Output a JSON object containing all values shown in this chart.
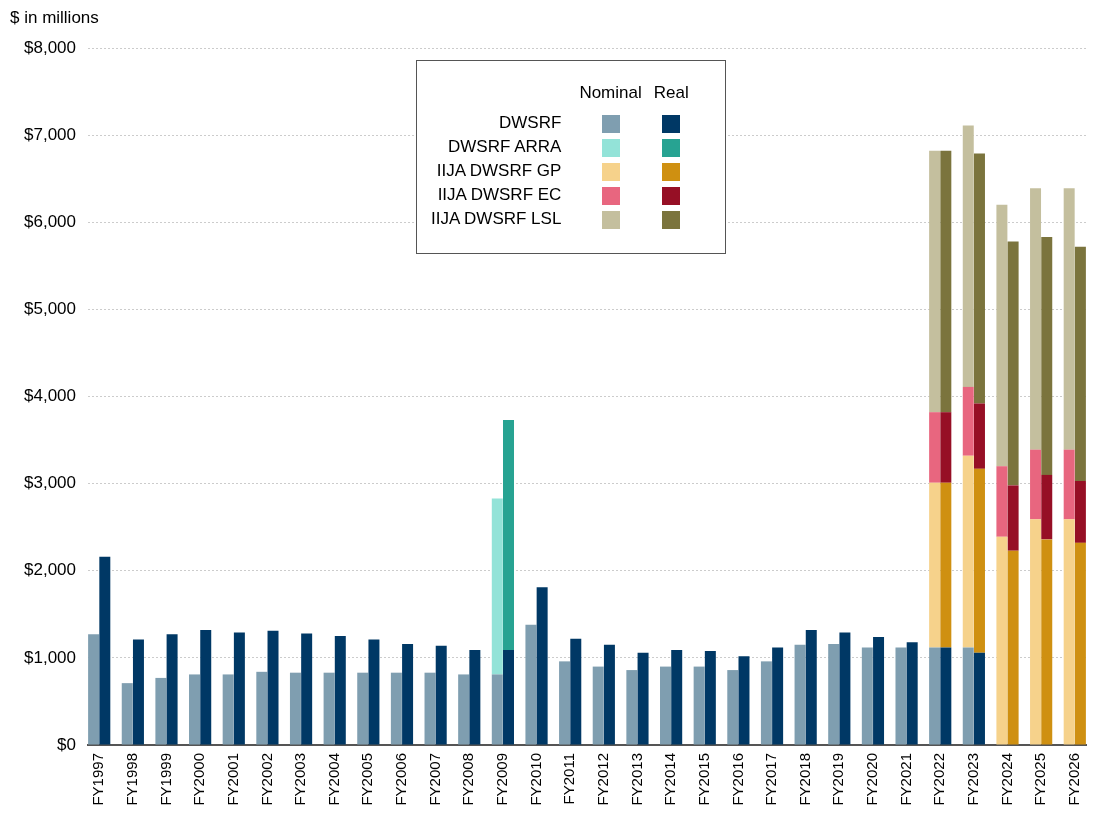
{
  "chart_data": {
    "type": "bar",
    "ylabel": "$ in millions",
    "categories": [
      "FY1997",
      null,
      null,
      "FY1998",
      null,
      null,
      "FY1999",
      null,
      null,
      "FY2000",
      null,
      null,
      "FY2001",
      null,
      null,
      "FY2002",
      null,
      null,
      "FY2003",
      null,
      null,
      "FY2004",
      null,
      null,
      "FY2005",
      null,
      null,
      "FY2006",
      null,
      null,
      "FY2007",
      null,
      null,
      "FY2008",
      null,
      null,
      "FY2009",
      null,
      null,
      "FY2010",
      null,
      null,
      "FY2011",
      null,
      null,
      "FY2012",
      null,
      null,
      "FY2013",
      null,
      null,
      "FY2014",
      null,
      null,
      "FY2015",
      null,
      null,
      "FY2016",
      null,
      null,
      "FY2017",
      null,
      null,
      "FY2018",
      null,
      null,
      "FY2019",
      null,
      null,
      "FY2020",
      null,
      null,
      "FY2021",
      null,
      null,
      "FY2022",
      null,
      null,
      "FY2023",
      null,
      null,
      "FY2024",
      null,
      null,
      "FY2025",
      null,
      null,
      "FY2026",
      null
    ],
    "stacked": true,
    "annotations": [
      "Nominal",
      "Real"
    ],
    "series": [
      {
        "name": "DWSRF",
        "values": [
          1270,
          2160,
          null,
          710,
          1210,
          null,
          770,
          1270,
          null,
          810,
          1320,
          null,
          810,
          1290,
          null,
          840,
          1310,
          null,
          830,
          1280,
          null,
          830,
          1250,
          null,
          830,
          1210,
          null,
          830,
          1160,
          null,
          830,
          1140,
          null,
          810,
          1090,
          null,
          810,
          1090,
          null,
          1380,
          1810,
          null,
          960,
          1220,
          null,
          900,
          1150,
          null,
          860,
          1060,
          null,
          900,
          1090,
          null,
          900,
          1080,
          null,
          860,
          1020,
          null,
          960,
          1120,
          null,
          1150,
          1320,
          null,
          1160,
          1290,
          null,
          1120,
          1240,
          null,
          1120,
          1180,
          null,
          1120,
          1120,
          null,
          1120,
          1060,
          null,
          null,
          null,
          null,
          null,
          null,
          null,
          null,
          null
        ],
        "colors": [
          "#7f9eb0",
          "#003865",
          null,
          "#7f9eb0",
          "#003865",
          null,
          "#7f9eb0",
          "#003865",
          null,
          "#7f9eb0",
          "#003865",
          null,
          "#7f9eb0",
          "#003865",
          null,
          "#7f9eb0",
          "#003865",
          null,
          "#7f9eb0",
          "#003865",
          null,
          "#7f9eb0",
          "#003865",
          null,
          "#7f9eb0",
          "#003865",
          null,
          "#7f9eb0",
          "#003865",
          null,
          "#7f9eb0",
          "#003865",
          null,
          "#7f9eb0",
          "#003865",
          null,
          "#7f9eb0",
          "#003865",
          null,
          "#7f9eb0",
          "#003865",
          null,
          "#7f9eb0",
          "#003865",
          null,
          "#7f9eb0",
          "#003865",
          null,
          "#7f9eb0",
          "#003865",
          null,
          "#7f9eb0",
          "#003865",
          null,
          "#7f9eb0",
          "#003865",
          null,
          "#7f9eb0",
          "#003865",
          null,
          "#7f9eb0",
          "#003865",
          null,
          "#7f9eb0",
          "#003865",
          null,
          "#7f9eb0",
          "#003865",
          null,
          "#7f9eb0",
          "#003865",
          null,
          "#7f9eb0",
          "#003865",
          null,
          "#7f9eb0",
          "#003865",
          null,
          "#7f9eb0",
          "#003865",
          null,
          "#7f9eb0",
          "#003865",
          null,
          "#7f9eb0",
          "#003865",
          null,
          "#7f9eb0",
          "#003865"
        ]
      },
      {
        "name": "DWSRF ARRA",
        "values": [
          null,
          null,
          null,
          null,
          null,
          null,
          null,
          null,
          null,
          null,
          null,
          null,
          null,
          null,
          null,
          null,
          null,
          null,
          null,
          null,
          null,
          null,
          null,
          null,
          null,
          null,
          null,
          null,
          null,
          null,
          null,
          null,
          null,
          null,
          null,
          null,
          2020,
          2640,
          null,
          null,
          null,
          null,
          null,
          null,
          null,
          null,
          null,
          null,
          null,
          null,
          null,
          null,
          null,
          null,
          null,
          null,
          null,
          null,
          null,
          null,
          null,
          null,
          null,
          null,
          null,
          null,
          null,
          null,
          null,
          null,
          null,
          null,
          null,
          null,
          null,
          null,
          null,
          null,
          null,
          null,
          null,
          null,
          null,
          null,
          null,
          null,
          null,
          null,
          null
        ],
        "colors": [
          "#93e3d8",
          "#27a392",
          null,
          "#93e3d8",
          "#27a392",
          null,
          "#93e3d8",
          "#27a392",
          null,
          "#93e3d8",
          "#27a392",
          null,
          "#93e3d8",
          "#27a392",
          null,
          "#93e3d8",
          "#27a392",
          null,
          "#93e3d8",
          "#27a392",
          null,
          "#93e3d8",
          "#27a392",
          null,
          "#93e3d8",
          "#27a392",
          null,
          "#93e3d8",
          "#27a392",
          null,
          "#93e3d8",
          "#27a392",
          null,
          "#93e3d8",
          "#27a392",
          null,
          "#93e3d8",
          "#27a392",
          null,
          "#93e3d8",
          "#27a392",
          null,
          "#93e3d8",
          "#27a392",
          null,
          "#93e3d8",
          "#27a392",
          null,
          "#93e3d8",
          "#27a392",
          null,
          "#93e3d8",
          "#27a392",
          null,
          "#93e3d8",
          "#27a392",
          null,
          "#93e3d8",
          "#27a392",
          null,
          "#93e3d8",
          "#27a392",
          null,
          "#93e3d8",
          "#27a392",
          null,
          "#93e3d8",
          "#27a392",
          null,
          "#93e3d8",
          "#27a392",
          null,
          "#93e3d8",
          "#27a392",
          null,
          "#93e3d8",
          "#27a392",
          null,
          "#93e3d8",
          "#27a392",
          null,
          "#93e3d8",
          "#27a392",
          null,
          "#93e3d8",
          "#27a392",
          null,
          "#93e3d8",
          "#27a392"
        ]
      },
      {
        "name": "IIJA DWSRF GP",
        "values": [
          null,
          null,
          null,
          null,
          null,
          null,
          null,
          null,
          null,
          null,
          null,
          null,
          null,
          null,
          null,
          null,
          null,
          null,
          null,
          null,
          null,
          null,
          null,
          null,
          null,
          null,
          null,
          null,
          null,
          null,
          null,
          null,
          null,
          null,
          null,
          null,
          null,
          null,
          null,
          null,
          null,
          null,
          null,
          null,
          null,
          null,
          null,
          null,
          null,
          null,
          null,
          null,
          null,
          null,
          null,
          null,
          null,
          null,
          null,
          null,
          null,
          null,
          null,
          null,
          null,
          null,
          null,
          null,
          null,
          null,
          null,
          null,
          null,
          null,
          null,
          1890,
          1890,
          null,
          2200,
          2110,
          null,
          2390,
          2230,
          null,
          2590,
          2360,
          null,
          2590,
          2320
        ],
        "colors": [
          "#f6d28b",
          "#cf9011",
          null,
          "#f6d28b",
          "#cf9011",
          null,
          "#f6d28b",
          "#cf9011",
          null,
          "#f6d28b",
          "#cf9011",
          null,
          "#f6d28b",
          "#cf9011",
          null,
          "#f6d28b",
          "#cf9011",
          null,
          "#f6d28b",
          "#cf9011",
          null,
          "#f6d28b",
          "#cf9011",
          null,
          "#f6d28b",
          "#cf9011",
          null,
          "#f6d28b",
          "#cf9011",
          null,
          "#f6d28b",
          "#cf9011",
          null,
          "#f6d28b",
          "#cf9011",
          null,
          "#f6d28b",
          "#cf9011",
          null,
          "#f6d28b",
          "#cf9011",
          null,
          "#f6d28b",
          "#cf9011",
          null,
          "#f6d28b",
          "#cf9011",
          null,
          "#f6d28b",
          "#cf9011",
          null,
          "#f6d28b",
          "#cf9011",
          null,
          "#f6d28b",
          "#cf9011",
          null,
          "#f6d28b",
          "#cf9011",
          null,
          "#f6d28b",
          "#cf9011",
          null,
          "#f6d28b",
          "#cf9011",
          null,
          "#f6d28b",
          "#cf9011",
          null,
          "#f6d28b",
          "#cf9011",
          null,
          "#f6d28b",
          "#cf9011",
          null,
          "#f6d28b",
          "#cf9011",
          null,
          "#f6d28b",
          "#cf9011",
          null,
          "#f6d28b",
          "#cf9011",
          null,
          "#f6d28b",
          "#cf9011",
          null,
          "#f6d28b",
          "#cf9011"
        ]
      },
      {
        "name": "IIJA DWSRF EC",
        "values": [
          null,
          null,
          null,
          null,
          null,
          null,
          null,
          null,
          null,
          null,
          null,
          null,
          null,
          null,
          null,
          null,
          null,
          null,
          null,
          null,
          null,
          null,
          null,
          null,
          null,
          null,
          null,
          null,
          null,
          null,
          null,
          null,
          null,
          null,
          null,
          null,
          null,
          null,
          null,
          null,
          null,
          null,
          null,
          null,
          null,
          null,
          null,
          null,
          null,
          null,
          null,
          null,
          null,
          null,
          null,
          null,
          null,
          null,
          null,
          null,
          null,
          null,
          null,
          null,
          null,
          null,
          null,
          null,
          null,
          null,
          null,
          null,
          null,
          null,
          null,
          810,
          810,
          null,
          790,
          750,
          null,
          810,
          750,
          null,
          800,
          740,
          null,
          800,
          710
        ],
        "colors": [
          "#e8667f",
          "#960f25",
          null,
          "#e8667f",
          "#960f25",
          null,
          "#e8667f",
          "#960f25",
          null,
          "#e8667f",
          "#960f25",
          null,
          "#e8667f",
          "#960f25",
          null,
          "#e8667f",
          "#960f25",
          null,
          "#e8667f",
          "#960f25",
          null,
          "#e8667f",
          "#960f25",
          null,
          "#e8667f",
          "#960f25",
          null,
          "#e8667f",
          "#960f25",
          null,
          "#e8667f",
          "#960f25",
          null,
          "#e8667f",
          "#960f25",
          null,
          "#e8667f",
          "#960f25",
          null,
          "#e8667f",
          "#960f25",
          null,
          "#e8667f",
          "#960f25",
          null,
          "#e8667f",
          "#960f25",
          null,
          "#e8667f",
          "#960f25",
          null,
          "#e8667f",
          "#960f25",
          null,
          "#e8667f",
          "#960f25",
          null,
          "#e8667f",
          "#960f25",
          null,
          "#e8667f",
          "#960f25",
          null,
          "#e8667f",
          "#960f25",
          null,
          "#e8667f",
          "#960f25",
          null,
          "#e8667f",
          "#960f25",
          null,
          "#e8667f",
          "#960f25",
          null,
          "#e8667f",
          "#960f25",
          null,
          "#e8667f",
          "#960f25",
          null,
          "#e8667f",
          "#960f25",
          null,
          "#e8667f",
          "#960f25",
          null,
          "#e8667f",
          "#960f25"
        ]
      },
      {
        "name": "IIJA DWSRF LSL",
        "values": [
          null,
          null,
          null,
          null,
          null,
          null,
          null,
          null,
          null,
          null,
          null,
          null,
          null,
          null,
          null,
          null,
          null,
          null,
          null,
          null,
          null,
          null,
          null,
          null,
          null,
          null,
          null,
          null,
          null,
          null,
          null,
          null,
          null,
          null,
          null,
          null,
          null,
          null,
          null,
          null,
          null,
          null,
          null,
          null,
          null,
          null,
          null,
          null,
          null,
          null,
          null,
          null,
          null,
          null,
          null,
          null,
          null,
          null,
          null,
          null,
          null,
          null,
          null,
          null,
          null,
          null,
          null,
          null,
          null,
          null,
          null,
          null,
          null,
          null,
          null,
          3000,
          3000,
          null,
          3000,
          2870,
          null,
          3000,
          2800,
          null,
          3000,
          2730,
          null,
          3000,
          2690
        ],
        "colors": [
          "#c4bf9e",
          "#7b743d",
          null,
          "#c4bf9e",
          "#7b743d",
          null,
          "#c4bf9e",
          "#7b743d",
          null,
          "#c4bf9e",
          "#7b743d",
          null,
          "#c4bf9e",
          "#7b743d",
          null,
          "#c4bf9e",
          "#7b743d",
          null,
          "#c4bf9e",
          "#7b743d",
          null,
          "#c4bf9e",
          "#7b743d",
          null,
          "#c4bf9e",
          "#7b743d",
          null,
          "#c4bf9e",
          "#7b743d",
          null,
          "#c4bf9e",
          "#7b743d",
          null,
          "#c4bf9e",
          "#7b743d",
          null,
          "#c4bf9e",
          "#7b743d",
          null,
          "#c4bf9e",
          "#7b743d",
          null,
          "#c4bf9e",
          "#7b743d",
          null,
          "#c4bf9e",
          "#7b743d",
          null,
          "#c4bf9e",
          "#7b743d",
          null,
          "#c4bf9e",
          "#7b743d",
          null,
          "#c4bf9e",
          "#7b743d",
          null,
          "#c4bf9e",
          "#7b743d",
          null,
          "#c4bf9e",
          "#7b743d",
          null,
          "#c4bf9e",
          "#7b743d",
          null,
          "#c4bf9e",
          "#7b743d",
          null,
          "#c4bf9e",
          "#7b743d",
          null,
          "#c4bf9e",
          "#7b743d",
          null,
          "#c4bf9e",
          "#7b743d",
          null,
          "#c4bf9e",
          "#7b743d",
          null,
          "#c4bf9e",
          "#7b743d",
          null,
          "#c4bf9e",
          "#7b743d",
          null,
          "#c4bf9e",
          "#7b743d"
        ]
      }
    ],
    "ylim": [
      0,
      8000
    ],
    "yticks": [
      {
        "value": 0,
        "label": "$0"
      },
      {
        "value": 1000,
        "label": "$1,000"
      },
      {
        "value": 2000,
        "label": "$2,000"
      },
      {
        "value": 3000,
        "label": "$3,000"
      },
      {
        "value": 4000,
        "label": "$4,000"
      },
      {
        "value": 5000,
        "label": "$5,000"
      },
      {
        "value": 6000,
        "label": "$6,000"
      },
      {
        "value": 7000,
        "label": "$7,000"
      },
      {
        "value": 8000,
        "label": "$8,000"
      }
    ],
    "grid": "y",
    "legend": "top"
  }
}
